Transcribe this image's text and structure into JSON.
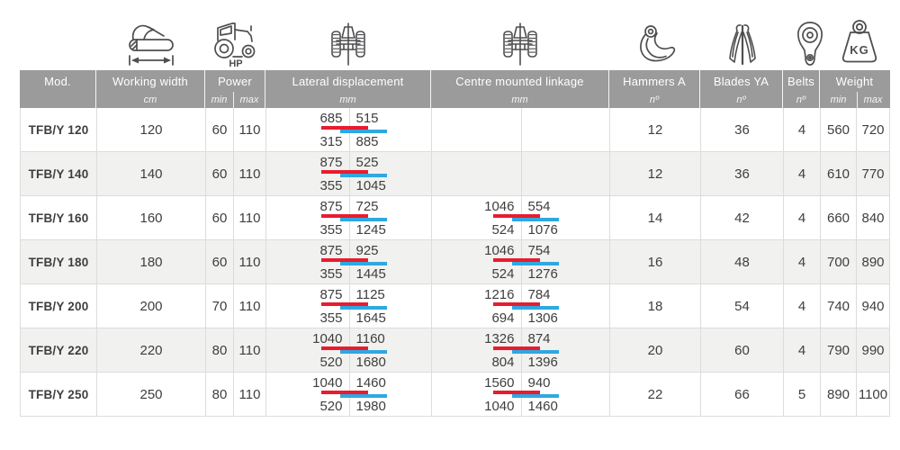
{
  "colors": {
    "header_bg": "#9c9b9b",
    "red_bar": "#e81c2e",
    "blue_bar": "#2fa8e1",
    "row_alt": "#f1f1f0",
    "border": "#dcdcdc",
    "text": "#3e3e3d",
    "icon_stroke": "#4e4e50"
  },
  "icons": {
    "working_width": "flail-mower-side-icon",
    "power": "tractor-icon",
    "power_label": "HP",
    "lateral": "tractor-rear-implement-icon",
    "centre": "tractor-rear-implement-icon",
    "hammers": "hammer-flail-icon",
    "blades": "y-blade-icon",
    "belts": "belt-icon",
    "weight": "weight-icon",
    "weight_label": "KG"
  },
  "header": {
    "mod": "Mod.",
    "working_width": {
      "label": "Working width",
      "unit": "cm"
    },
    "power": {
      "label": "Power",
      "min": "min",
      "max": "max"
    },
    "lateral_displacement": {
      "label": "Lateral displacement",
      "unit": "mm"
    },
    "centre_linkage": {
      "label": "Centre mounted linkage",
      "unit": "mm"
    },
    "hammers": {
      "label": "Hammers A",
      "unit": "nº"
    },
    "blades": {
      "label": "Blades YA",
      "unit": "nº"
    },
    "belts": {
      "label": "Belts",
      "unit": "nº"
    },
    "weight": {
      "label": "Weight",
      "min": "min",
      "max": "max"
    }
  },
  "table": {
    "rows": [
      {
        "model": "TFB/Y 120",
        "working_width": "120",
        "power_min": "60",
        "power_max": "110",
        "lateral": {
          "top_left": "685",
          "top_right": "515",
          "bottom_left": "315",
          "bottom_right": "885"
        },
        "centre": null,
        "hammers": "12",
        "blades": "36",
        "belts": "4",
        "weight_min": "560",
        "weight_max": "720"
      },
      {
        "model": "TFB/Y 140",
        "working_width": "140",
        "power_min": "60",
        "power_max": "110",
        "lateral": {
          "top_left": "875",
          "top_right": "525",
          "bottom_left": "355",
          "bottom_right": "1045"
        },
        "centre": null,
        "hammers": "12",
        "blades": "36",
        "belts": "4",
        "weight_min": "610",
        "weight_max": "770"
      },
      {
        "model": "TFB/Y 160",
        "working_width": "160",
        "power_min": "60",
        "power_max": "110",
        "lateral": {
          "top_left": "875",
          "top_right": "725",
          "bottom_left": "355",
          "bottom_right": "1245"
        },
        "centre": {
          "top_left": "1046",
          "top_right": "554",
          "bottom_left": "524",
          "bottom_right": "1076"
        },
        "hammers": "14",
        "blades": "42",
        "belts": "4",
        "weight_min": "660",
        "weight_max": "840"
      },
      {
        "model": "TFB/Y 180",
        "working_width": "180",
        "power_min": "60",
        "power_max": "110",
        "lateral": {
          "top_left": "875",
          "top_right": "925",
          "bottom_left": "355",
          "bottom_right": "1445"
        },
        "centre": {
          "top_left": "1046",
          "top_right": "754",
          "bottom_left": "524",
          "bottom_right": "1276"
        },
        "hammers": "16",
        "blades": "48",
        "belts": "4",
        "weight_min": "700",
        "weight_max": "890"
      },
      {
        "model": "TFB/Y 200",
        "working_width": "200",
        "power_min": "70",
        "power_max": "110",
        "lateral": {
          "top_left": "875",
          "top_right": "1125",
          "bottom_left": "355",
          "bottom_right": "1645"
        },
        "centre": {
          "top_left": "1216",
          "top_right": "784",
          "bottom_left": "694",
          "bottom_right": "1306"
        },
        "hammers": "18",
        "blades": "54",
        "belts": "4",
        "weight_min": "740",
        "weight_max": "940"
      },
      {
        "model": "TFB/Y 220",
        "working_width": "220",
        "power_min": "80",
        "power_max": "110",
        "lateral": {
          "top_left": "1040",
          "top_right": "1160",
          "bottom_left": "520",
          "bottom_right": "1680"
        },
        "centre": {
          "top_left": "1326",
          "top_right": "874",
          "bottom_left": "804",
          "bottom_right": "1396"
        },
        "hammers": "20",
        "blades": "60",
        "belts": "4",
        "weight_min": "790",
        "weight_max": "990"
      },
      {
        "model": "TFB/Y 250",
        "working_width": "250",
        "power_min": "80",
        "power_max": "110",
        "lateral": {
          "top_left": "1040",
          "top_right": "1460",
          "bottom_left": "520",
          "bottom_right": "1980"
        },
        "centre": {
          "top_left": "1560",
          "top_right": "940",
          "bottom_left": "1040",
          "bottom_right": "1460"
        },
        "hammers": "22",
        "blades": "66",
        "belts": "5",
        "weight_min": "890",
        "weight_max": "1100"
      }
    ]
  }
}
